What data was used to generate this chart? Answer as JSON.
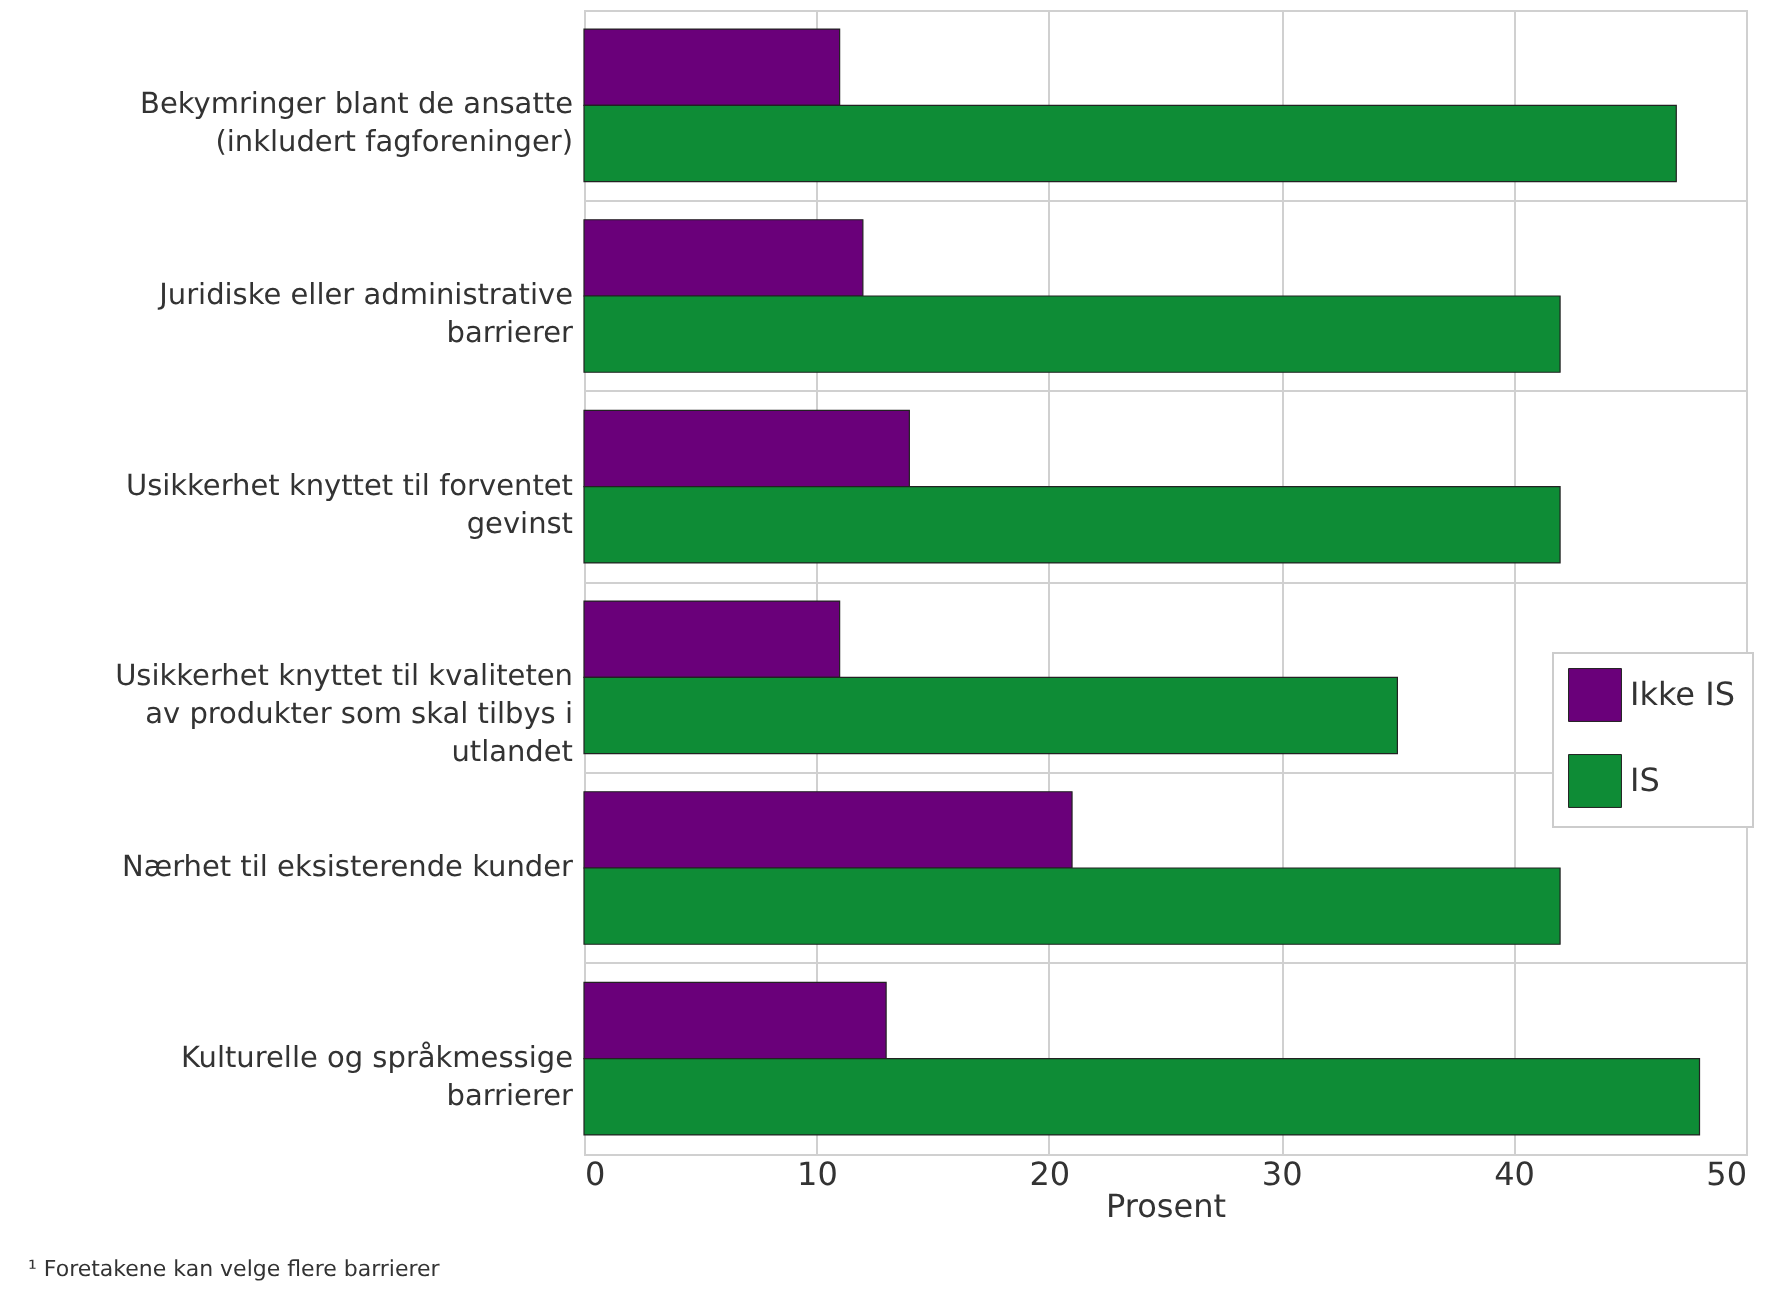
{
  "chart_data": {
    "type": "bar",
    "orientation": "horizontal",
    "categories": [
      "Bekymringer blant de ansatte (inkludert fagforeninger)",
      "Juridiske eller administrative barrierer",
      "Usikkerhet knyttet til forventet gevinst",
      "Usikkerhet knyttet til kvaliteten av produkter som skal tilbys i utlandet",
      "Nærhet til eksisterende kunder",
      "Kulturelle og språkmessige barrierer"
    ],
    "series": [
      {
        "name": "Ikke IS",
        "color": "#6a007a",
        "values": [
          11,
          12,
          14,
          11,
          21,
          13
        ]
      },
      {
        "name": "IS",
        "color": "#0e8c36",
        "values": [
          47,
          42,
          42,
          35,
          42,
          48
        ]
      }
    ],
    "xlabel": "Prosent",
    "xlim": [
      0,
      50
    ],
    "xticks": [
      0,
      10,
      20,
      30,
      40,
      50
    ],
    "grid": true,
    "legend": "right",
    "annotations": [
      "¹ Foretakene kan velge flere barrierer"
    ]
  }
}
